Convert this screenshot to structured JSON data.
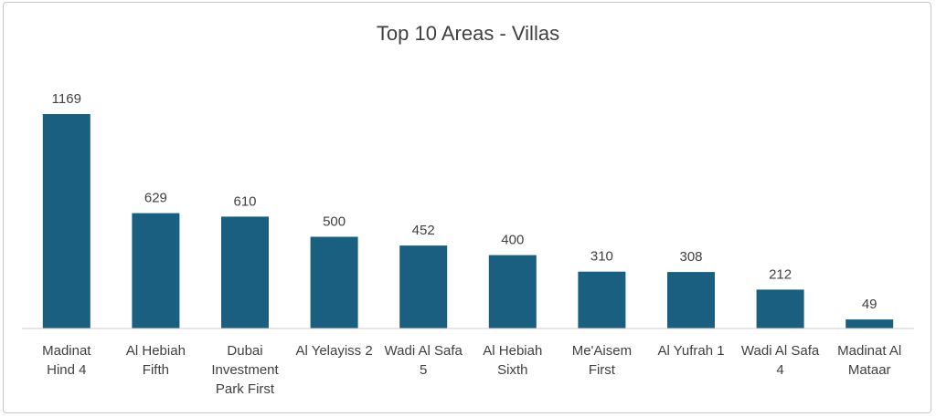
{
  "chart_data": {
    "type": "bar",
    "title": "Top 10 Areas - Villas",
    "xlabel": "",
    "ylabel": "",
    "categories": [
      [
        "Madinat",
        "Hind 4"
      ],
      [
        "Al Hebiah",
        "Fifth"
      ],
      [
        "Dubai",
        "Investment",
        "Park First"
      ],
      [
        "Al Yelayiss 2"
      ],
      [
        "Wadi Al Safa",
        "5"
      ],
      [
        "Al Hebiah",
        "Sixth"
      ],
      [
        "Me'Aisem",
        "First"
      ],
      [
        "Al Yufrah 1"
      ],
      [
        "Wadi Al Safa",
        "4"
      ],
      [
        "Madinat Al",
        "Mataar"
      ]
    ],
    "values": [
      1169,
      629,
      610,
      500,
      452,
      400,
      310,
      308,
      212,
      49
    ],
    "ylim": [
      0,
      1169
    ],
    "grid": false,
    "legend": "none",
    "data_labels": true,
    "colors": {
      "bar": "#1a5e80",
      "axis": "#d0d0d0",
      "text": "#404040",
      "frame": "#c8c8c8"
    }
  }
}
